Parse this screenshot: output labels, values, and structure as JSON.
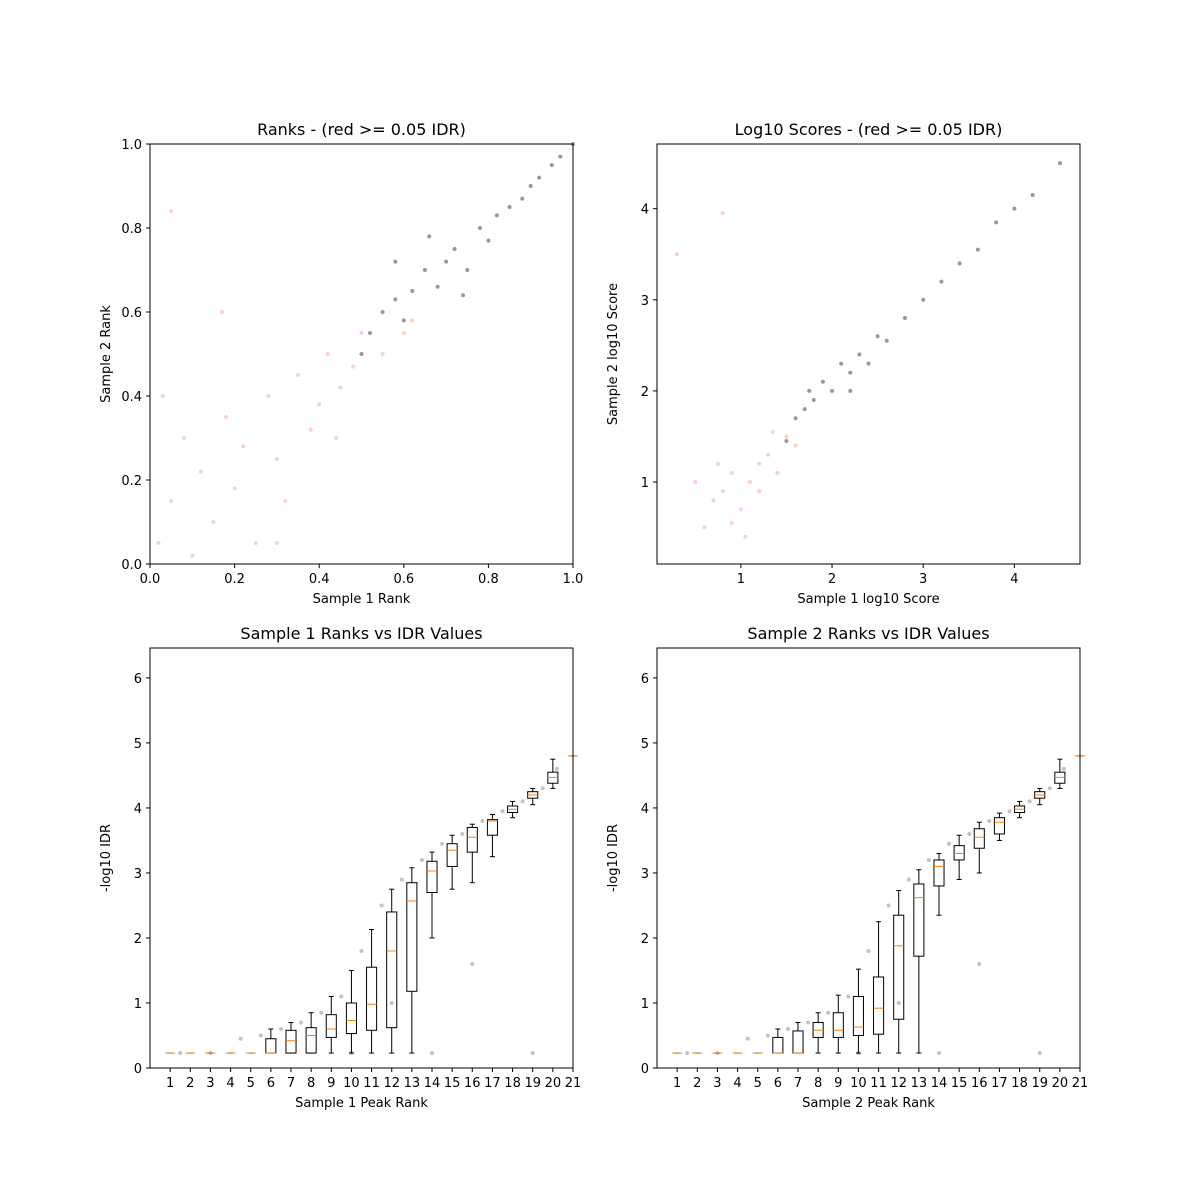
{
  "chart_data": [
    {
      "type": "scatter",
      "title": "Ranks - (red >= 0.05 IDR)",
      "xlabel": "Sample 1 Rank",
      "ylabel": "Sample 2 Rank",
      "xlim": [
        0,
        1
      ],
      "ylim": [
        0,
        1
      ],
      "xticks": [
        {
          "value": 0,
          "label": "0.0"
        },
        0.2,
        0.4,
        0.6,
        0.8,
        {
          "value": 1,
          "label": "1.0"
        }
      ],
      "yticks": [
        {
          "value": 0,
          "label": "0.0"
        },
        0.2,
        0.4,
        0.6,
        0.8,
        {
          "value": 1,
          "label": "1.0"
        }
      ],
      "series": [
        {
          "color": "#f4a582",
          "x": [
            0.02,
            0.05,
            0.08,
            0.1,
            0.12,
            0.15,
            0.18,
            0.2,
            0.22,
            0.25,
            0.28,
            0.3,
            0.32,
            0.35,
            0.38,
            0.4,
            0.42,
            0.45,
            0.48,
            0.5,
            0.55,
            0.6,
            0.03,
            0.17,
            0.05,
            0.3,
            0.62,
            0.44
          ],
          "values": [
            0.05,
            0.15,
            0.3,
            0.02,
            0.22,
            0.1,
            0.35,
            0.18,
            0.28,
            0.05,
            0.4,
            0.25,
            0.15,
            0.45,
            0.32,
            0.38,
            0.5,
            0.42,
            0.47,
            0.55,
            0.5,
            0.55,
            0.4,
            0.6,
            0.84,
            0.05,
            0.58,
            0.3
          ]
        },
        {
          "color": "#333333",
          "x": [
            0.5,
            0.52,
            0.55,
            0.58,
            0.6,
            0.62,
            0.65,
            0.68,
            0.7,
            0.72,
            0.75,
            0.78,
            0.8,
            0.82,
            0.85,
            0.88,
            0.9,
            0.92,
            0.95,
            0.97,
            1.0,
            0.66,
            0.74,
            0.58
          ],
          "values": [
            0.5,
            0.55,
            0.6,
            0.63,
            0.58,
            0.65,
            0.7,
            0.66,
            0.72,
            0.75,
            0.7,
            0.8,
            0.77,
            0.83,
            0.85,
            0.87,
            0.9,
            0.92,
            0.95,
            0.97,
            1.0,
            0.78,
            0.64,
            0.72
          ]
        }
      ]
    },
    {
      "type": "scatter",
      "title": "Log10 Scores - (red >= 0.05 IDR)",
      "xlabel": "Sample 1 log10 Score",
      "ylabel": "Sample 2 log10 Score",
      "xlim": [
        0.08,
        4.72
      ],
      "ylim": [
        0.1,
        4.71
      ],
      "xticks": [
        1,
        2,
        3,
        4
      ],
      "yticks": [
        1,
        2,
        3,
        4
      ],
      "series": [
        {
          "color": "#f4a582",
          "x": [
            0.6,
            0.7,
            0.8,
            0.9,
            1.0,
            1.1,
            1.2,
            1.3,
            1.4,
            0.75,
            1.5,
            1.6,
            0.5,
            0.9,
            1.2,
            1.35,
            1.05,
            0.3,
            0.8
          ],
          "values": [
            0.5,
            0.8,
            0.9,
            1.1,
            0.7,
            1.0,
            1.2,
            1.3,
            1.1,
            1.2,
            1.5,
            1.4,
            1.0,
            0.55,
            0.9,
            1.55,
            0.4,
            3.5,
            3.95
          ]
        },
        {
          "color": "#333333",
          "x": [
            1.5,
            1.6,
            1.7,
            1.8,
            1.9,
            2.0,
            2.1,
            2.2,
            2.3,
            2.4,
            2.5,
            2.6,
            2.8,
            3.0,
            3.2,
            3.4,
            3.6,
            3.8,
            4.0,
            4.2,
            4.5,
            1.75,
            2.2
          ],
          "values": [
            1.45,
            1.7,
            1.8,
            1.9,
            2.1,
            2.0,
            2.3,
            2.2,
            2.4,
            2.3,
            2.6,
            2.55,
            2.8,
            3.0,
            3.2,
            3.4,
            3.55,
            3.85,
            4.0,
            4.15,
            4.5,
            2.0,
            2.0
          ]
        }
      ]
    },
    {
      "type": "box",
      "title": "Sample 1 Ranks vs IDR Values",
      "xlabel": "Sample 1 Peak Rank",
      "ylabel": "-log10 IDR",
      "xlim": [
        0,
        21
      ],
      "ylim": [
        0,
        6.46
      ],
      "xticks": [
        1,
        2,
        3,
        4,
        5,
        6,
        7,
        8,
        9,
        10,
        11,
        12,
        13,
        14,
        15,
        16,
        17,
        18,
        19,
        20,
        21
      ],
      "yticks": [
        0,
        1,
        2,
        3,
        4,
        5,
        6
      ],
      "x": [
        1,
        2,
        3,
        4,
        5,
        6,
        7,
        8,
        9,
        10,
        11,
        12,
        13,
        14,
        15,
        16,
        17,
        18,
        19,
        20,
        21
      ],
      "whislo": [
        0.23,
        0.23,
        0.23,
        0.23,
        0.23,
        0.23,
        0.23,
        0.23,
        0.23,
        0.23,
        0.23,
        0.23,
        0.23,
        2.0,
        2.75,
        2.85,
        3.25,
        3.85,
        4.05,
        4.3,
        4.8
      ],
      "q1": [
        0.23,
        0.23,
        0.23,
        0.23,
        0.23,
        0.23,
        0.23,
        0.23,
        0.47,
        0.53,
        0.58,
        0.62,
        1.18,
        2.7,
        3.1,
        3.32,
        3.58,
        3.93,
        4.15,
        4.38,
        4.8
      ],
      "med": [
        0.23,
        0.23,
        0.23,
        0.23,
        0.23,
        0.23,
        0.42,
        0.5,
        0.6,
        0.73,
        0.98,
        1.8,
        2.57,
        3.03,
        3.35,
        3.55,
        3.8,
        3.98,
        4.2,
        4.47,
        4.8
      ],
      "q3": [
        0.23,
        0.23,
        0.23,
        0.23,
        0.23,
        0.45,
        0.58,
        0.62,
        0.82,
        1.0,
        1.55,
        2.4,
        2.85,
        3.18,
        3.45,
        3.7,
        3.82,
        4.03,
        4.25,
        4.55,
        4.8
      ],
      "whishi": [
        0.23,
        0.23,
        0.23,
        0.23,
        0.23,
        0.6,
        0.7,
        0.85,
        1.1,
        1.5,
        2.13,
        2.75,
        3.08,
        3.32,
        3.58,
        3.75,
        3.9,
        4.1,
        4.3,
        4.75,
        4.8
      ],
      "color": "#000000",
      "median_color": "#ff7f0e",
      "points": {
        "color": "#888888",
        "x": [
          1.5,
          3,
          4.5,
          5.5,
          6.5,
          7.5,
          8.5,
          9.5,
          10.5,
          11.5,
          12.5,
          13.5,
          14.5,
          15.5,
          16.5,
          17.5,
          18.5,
          19.5,
          20.2,
          10,
          14,
          19,
          16,
          12
        ],
        "values": [
          0.23,
          0.23,
          0.45,
          0.5,
          0.6,
          0.7,
          0.85,
          1.1,
          1.8,
          2.5,
          2.9,
          3.2,
          3.45,
          3.6,
          3.8,
          3.95,
          4.1,
          4.3,
          4.6,
          0.23,
          0.23,
          0.23,
          1.6,
          1.0
        ]
      }
    },
    {
      "type": "box",
      "title": "Sample 2 Ranks vs IDR Values",
      "xlabel": "Sample 2 Peak Rank",
      "ylabel": "-log10 IDR",
      "xlim": [
        0,
        21
      ],
      "ylim": [
        0,
        6.46
      ],
      "xticks": [
        1,
        2,
        3,
        4,
        5,
        6,
        7,
        8,
        9,
        10,
        11,
        12,
        13,
        14,
        15,
        16,
        17,
        18,
        19,
        20,
        21
      ],
      "yticks": [
        0,
        1,
        2,
        3,
        4,
        5,
        6
      ],
      "x": [
        1,
        2,
        3,
        4,
        5,
        6,
        7,
        8,
        9,
        10,
        11,
        12,
        13,
        14,
        15,
        16,
        17,
        18,
        19,
        20,
        21
      ],
      "whislo": [
        0.23,
        0.23,
        0.23,
        0.23,
        0.23,
        0.23,
        0.23,
        0.23,
        0.23,
        0.23,
        0.23,
        0.23,
        0.23,
        2.35,
        2.9,
        3.0,
        3.5,
        3.85,
        4.05,
        4.3,
        4.8
      ],
      "q1": [
        0.23,
        0.23,
        0.23,
        0.23,
        0.23,
        0.23,
        0.23,
        0.47,
        0.47,
        0.5,
        0.52,
        0.75,
        1.72,
        2.8,
        3.2,
        3.38,
        3.6,
        3.93,
        4.15,
        4.38,
        4.8
      ],
      "med": [
        0.23,
        0.23,
        0.23,
        0.23,
        0.23,
        0.23,
        0.23,
        0.58,
        0.58,
        0.63,
        0.92,
        1.88,
        2.62,
        3.1,
        3.3,
        3.55,
        3.78,
        3.98,
        4.2,
        4.47,
        4.8
      ],
      "q3": [
        0.23,
        0.23,
        0.23,
        0.23,
        0.23,
        0.47,
        0.57,
        0.7,
        0.85,
        1.1,
        1.4,
        2.35,
        2.83,
        3.2,
        3.42,
        3.68,
        3.85,
        4.03,
        4.25,
        4.55,
        4.8
      ],
      "whishi": [
        0.23,
        0.23,
        0.23,
        0.23,
        0.23,
        0.6,
        0.7,
        0.85,
        1.12,
        1.52,
        2.25,
        2.73,
        3.05,
        3.3,
        3.58,
        3.78,
        3.92,
        4.1,
        4.3,
        4.75,
        4.8
      ],
      "color": "#000000",
      "median_color": "#ff7f0e",
      "points": {
        "color": "#888888",
        "x": [
          1.5,
          3,
          4.5,
          5.5,
          6.5,
          7.5,
          8.5,
          9.5,
          10.5,
          11.5,
          12.5,
          13.5,
          14.5,
          15.5,
          16.5,
          17.5,
          18.5,
          19.5,
          20.2,
          10,
          14,
          19,
          16,
          12
        ],
        "values": [
          0.23,
          0.23,
          0.45,
          0.5,
          0.6,
          0.7,
          0.85,
          1.1,
          1.8,
          2.5,
          2.9,
          3.2,
          3.45,
          3.6,
          3.8,
          3.95,
          4.1,
          4.3,
          4.6,
          0.23,
          0.23,
          0.23,
          1.6,
          1.0
        ]
      }
    }
  ]
}
